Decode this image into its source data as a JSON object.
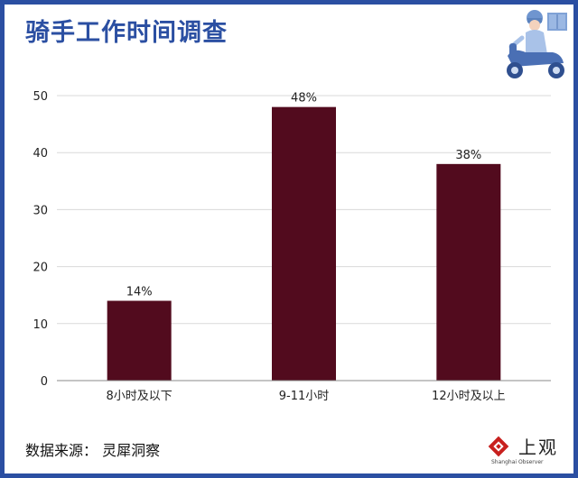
{
  "title": "骑手工作时间调查",
  "source": "数据来源：  灵犀洞察",
  "logo": {
    "text": "上观",
    "subtitle": "Shanghai Observer",
    "icon": "shanghai-observer-logo-icon"
  },
  "illustration": {
    "icon": "delivery-rider-scooter-icon"
  },
  "colors": {
    "frame": "#2b4fa2",
    "bar": "#520b1e",
    "title": "#2b4fa2"
  },
  "chart_data": {
    "type": "bar",
    "title": "",
    "xlabel": "",
    "ylabel": "",
    "categories": [
      "8小时及以下",
      "9-11小时",
      "12小时及以上"
    ],
    "values": [
      14,
      48,
      38
    ],
    "data_labels": [
      "14%",
      "48%",
      "38%"
    ],
    "ylim": [
      0,
      50
    ],
    "yticks": [
      0,
      10,
      20,
      30,
      40,
      50
    ],
    "grid": true,
    "legend": "none"
  }
}
